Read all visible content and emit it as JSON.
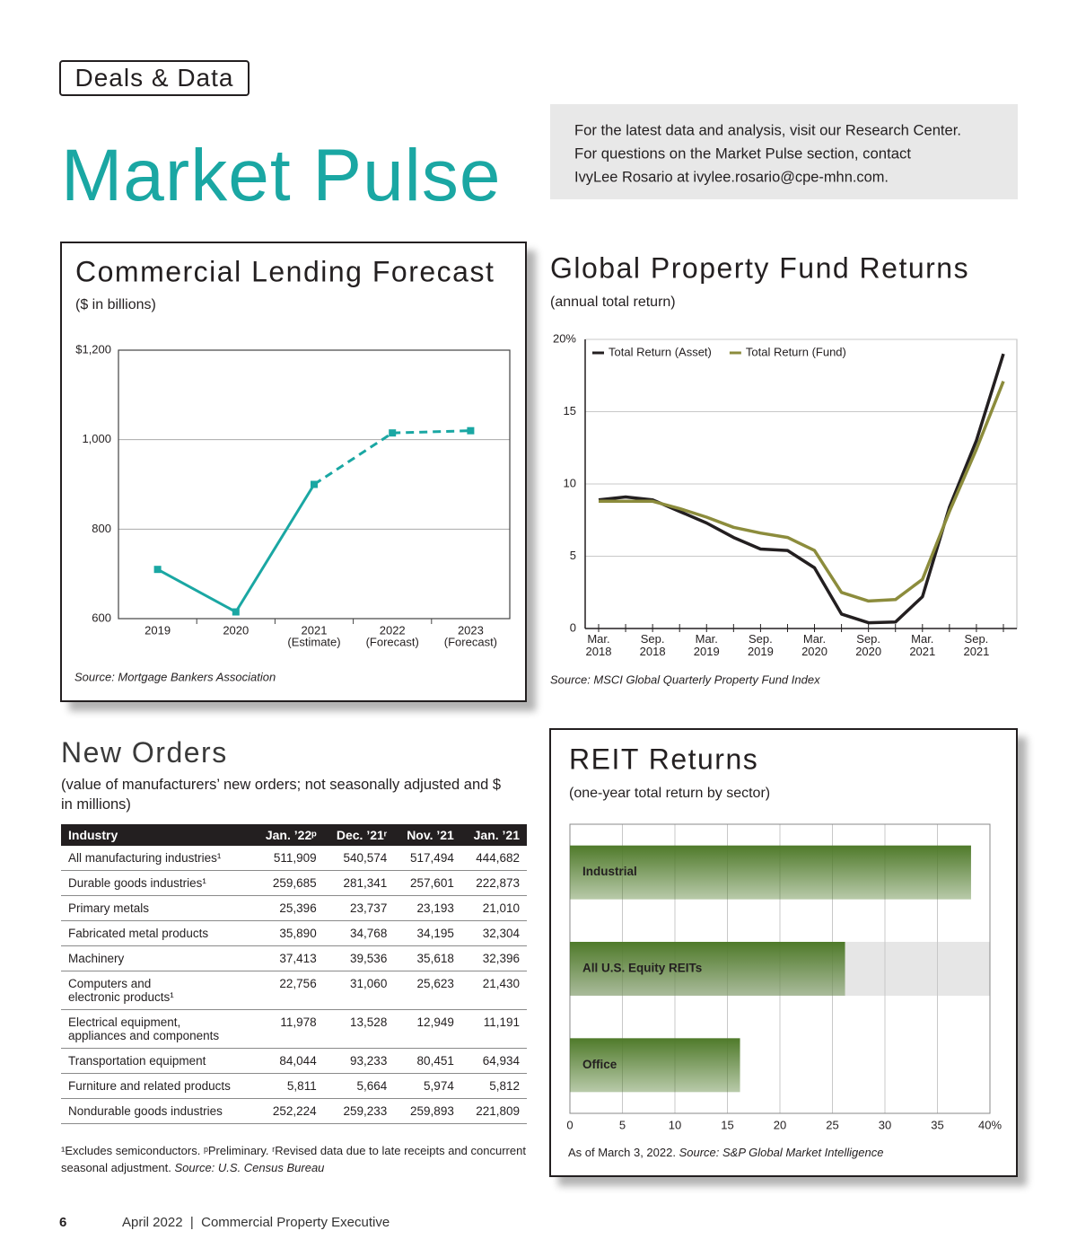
{
  "header": {
    "section": "Deals & Data",
    "title": "Market Pulse",
    "info": [
      "For the latest data and analysis, visit our Research Center.",
      "For questions on the Market Pulse section, contact",
      "IvyLee Rosario at ivylee.rosario@cpe-mhn.com."
    ]
  },
  "chart_data": [
    {
      "type": "line",
      "title": "Commercial Lending Forecast",
      "subtitle": "($ in billions)",
      "categories": [
        "2019",
        "2020",
        "2021",
        "2022",
        "2023"
      ],
      "category_sublabels": [
        null,
        null,
        "(Estimate)",
        "(Forecast)",
        "(Forecast)"
      ],
      "values": [
        710,
        615,
        900,
        1015,
        1020
      ],
      "segment_styles": [
        "solid",
        "solid",
        "dashed",
        "dashed"
      ],
      "color": "#1aa7a3",
      "ylim": [
        600,
        1200
      ],
      "yticks": [
        600,
        800,
        {
          "value": 1000,
          "label": "1,000"
        },
        {
          "value": 1200,
          "label": "$1,200"
        }
      ],
      "grid": true,
      "source": "Source: Mortgage Bankers Association"
    },
    {
      "type": "line",
      "title": "Global Property Fund Returns",
      "subtitle": "(annual total return)",
      "categories": [
        "Mar. 2018",
        null,
        "Sep. 2018",
        null,
        "Mar. 2019",
        null,
        "Sep. 2019",
        null,
        "Mar. 2020",
        null,
        "Sep. 2020",
        null,
        "Mar. 2021",
        null,
        "Sep. 2021",
        null
      ],
      "series": [
        {
          "name": "Total Return (Asset)",
          "color": "#231f20",
          "values": [
            8.9,
            9.1,
            8.9,
            8.1,
            7.3,
            6.3,
            5.5,
            5.4,
            4.2,
            1.0,
            0.4,
            0.45,
            2.2,
            8.4,
            13.0,
            19.0
          ]
        },
        {
          "name": "Total Return (Fund)",
          "color": "#8c8c3c",
          "values": [
            8.8,
            8.8,
            8.8,
            8.3,
            7.7,
            7.0,
            6.6,
            6.3,
            5.4,
            2.5,
            1.9,
            2.0,
            3.4,
            8.1,
            12.4,
            17.1
          ]
        }
      ],
      "ylim": [
        0,
        20
      ],
      "yticks": [
        0,
        5,
        10,
        15,
        {
          "value": 20,
          "label": "20%"
        }
      ],
      "grid": true,
      "legend": "top-left",
      "source": "Source: MSCI Global Quarterly Property Fund Index"
    },
    {
      "type": "hbar",
      "title": "REIT Returns",
      "subtitle": "(one-year total return by sector)",
      "categories": [
        "Industrial",
        "All U.S. Equity REITs",
        "Office"
      ],
      "values": [
        38.2,
        26.2,
        16.2
      ],
      "color": "#4f7a2a",
      "highlight": 1,
      "xlim": [
        0,
        40
      ],
      "xticks": [
        0,
        5,
        10,
        15,
        20,
        25,
        30,
        35,
        {
          "value": 40,
          "label": "40%"
        }
      ],
      "grid": true,
      "note": "As of March 3, 2022.",
      "source": "Source: S&P Global Market Intelligence"
    }
  ],
  "table": {
    "title": "New Orders",
    "subtitle": "(value of manufacturers’ new orders; not seasonally adjusted and $ in millions)",
    "columns": [
      "Industry",
      "Jan. ’22ᵖ",
      "Dec. ’21ʳ",
      "Nov. ’21",
      "Jan. ’21"
    ],
    "rows": [
      [
        "All manufacturing industries¹",
        "511,909",
        "540,574",
        "517,494",
        "444,682"
      ],
      [
        "Durable goods industries¹",
        "259,685",
        "281,341",
        "257,601",
        "222,873"
      ],
      [
        "Primary metals",
        "25,396",
        "23,737",
        "23,193",
        "21,010"
      ],
      [
        "Fabricated metal products",
        "35,890",
        "34,768",
        "34,195",
        "32,304"
      ],
      [
        "Machinery",
        "37,413",
        "39,536",
        "35,618",
        "32,396"
      ],
      [
        "Computers and\nelectronic products¹",
        "22,756",
        "31,060",
        "25,623",
        "21,430"
      ],
      [
        "Electrical equipment,\nappliances and components",
        "11,978",
        "13,528",
        "12,949",
        "11,191"
      ],
      [
        "Transportation equipment",
        "84,044",
        "93,233",
        "80,451",
        "64,934"
      ],
      [
        "Furniture and related products",
        "5,811",
        "5,664",
        "5,974",
        "5,812"
      ],
      [
        "Nondurable goods industries",
        "252,224",
        "259,233",
        "259,893",
        "221,809"
      ]
    ],
    "footnote": "¹Excludes semiconductors. ᵖPreliminary. ʳRevised data due to late receipts and concurrent seasonal adjustment.",
    "source": "Source: U.S. Census Bureau"
  },
  "footer": {
    "page": "6",
    "text": "April 2022  |  Commercial Property Executive"
  }
}
